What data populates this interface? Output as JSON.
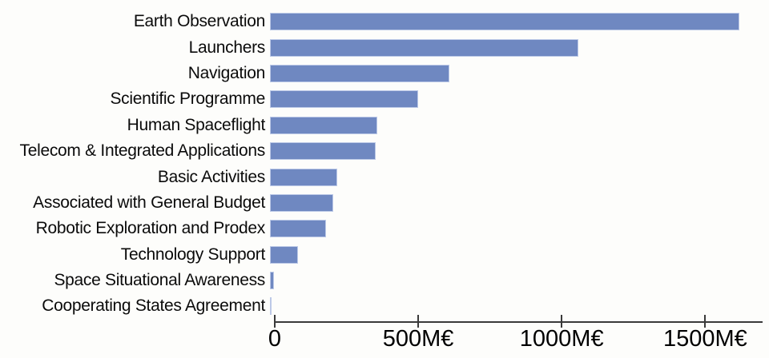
{
  "chart_data": {
    "type": "bar",
    "orientation": "horizontal",
    "title": "",
    "categories": [
      "Earth Observation",
      "Launchers",
      "Navigation",
      "Scientific Programme",
      "Human Spaceflight",
      "Telecom & Integrated Applications",
      "Basic Activities",
      "Associated with General Budget",
      "Robotic Exploration and Prodex",
      "Technology Support",
      "Space Situational Awareness",
      "Cooperating States Agreement"
    ],
    "values": [
      1600,
      1050,
      610,
      505,
      365,
      360,
      230,
      215,
      190,
      95,
      15,
      5
    ],
    "unit": "M€",
    "xlabel": "",
    "ylabel": "",
    "xlim": [
      0,
      1700
    ],
    "x_ticks": [
      {
        "value": 0,
        "label": "0"
      },
      {
        "value": 500,
        "label": "500M€"
      },
      {
        "value": 1000,
        "label": "1000M€"
      },
      {
        "value": 1500,
        "label": "1500M€"
      }
    ],
    "grid": false,
    "legend": false,
    "colors": {
      "bar_fill": "#6f88c1",
      "bar_border": "#bcc9e7",
      "axis": "#3a3a3a",
      "text": "#000000",
      "background": "#fdfdfb"
    }
  }
}
